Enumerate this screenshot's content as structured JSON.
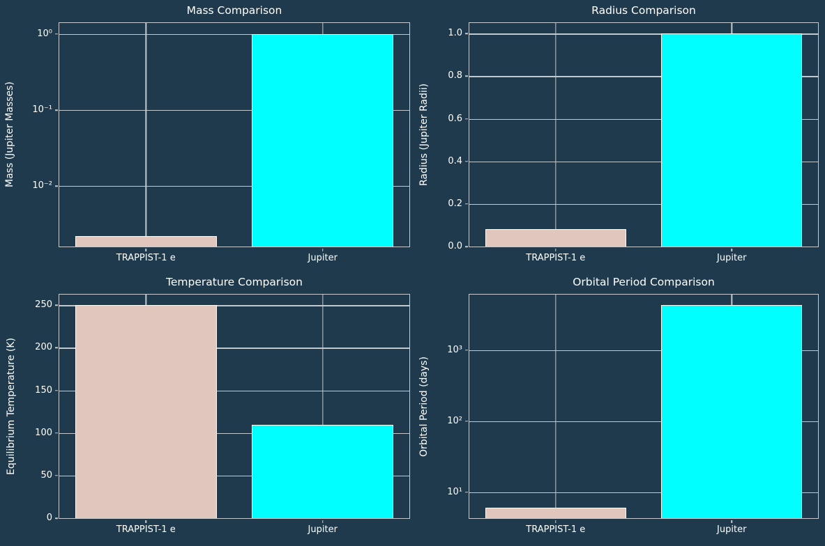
{
  "figure": {
    "background_color": "#1F3A4C",
    "text_color": "#FFFFFF",
    "grid_color": "#C2CACE",
    "spine_color": "#C6CCD0",
    "bar_edge_color": "#FFFFFF"
  },
  "chart_data": [
    {
      "type": "bar",
      "title": "Mass Comparison",
      "ylabel": "Mass (Jupiter Masses)",
      "xlabel": "",
      "yscale": "log",
      "ylim": [
        0.0016,
        1.4
      ],
      "grid": true,
      "legend": "none",
      "categories": [
        "TRAPPIST-1 e",
        "Jupiter"
      ],
      "values": [
        0.0022,
        1.0
      ],
      "bar_colors": [
        "#E0C6BD",
        "#00FFFF"
      ],
      "yticks": [
        {
          "value": 1,
          "label": "10⁰"
        },
        {
          "value": 0.1,
          "label": "10⁻¹"
        },
        {
          "value": 0.01,
          "label": "10⁻²"
        }
      ],
      "x_centers": [
        0.2475,
        0.7525
      ],
      "bar_width_frac": 0.404
    },
    {
      "type": "bar",
      "title": "Radius Comparison",
      "ylabel": "Radius (Jupiter Radii)",
      "xlabel": "",
      "yscale": "linear",
      "ylim": [
        0,
        1.05
      ],
      "grid": true,
      "legend": "none",
      "categories": [
        "TRAPPIST-1 e",
        "Jupiter"
      ],
      "values": [
        0.082,
        1.0
      ],
      "bar_colors": [
        "#E0C6BD",
        "#00FFFF"
      ],
      "yticks": [
        {
          "value": 0.0,
          "label": "0.0"
        },
        {
          "value": 0.2,
          "label": "0.2"
        },
        {
          "value": 0.4,
          "label": "0.4"
        },
        {
          "value": 0.6,
          "label": "0.6"
        },
        {
          "value": 0.8,
          "label": "0.8"
        },
        {
          "value": 1.0,
          "label": "1.0"
        }
      ],
      "x_centers": [
        0.2475,
        0.7525
      ],
      "bar_width_frac": 0.404
    },
    {
      "type": "bar",
      "title": "Temperature Comparison",
      "ylabel": "Equilibrium Temperature (K)",
      "xlabel": "",
      "yscale": "linear",
      "ylim": [
        0,
        262.5
      ],
      "grid": true,
      "legend": "none",
      "categories": [
        "TRAPPIST-1 e",
        "Jupiter"
      ],
      "values": [
        250,
        110
      ],
      "bar_colors": [
        "#E0C6BD",
        "#00FFFF"
      ],
      "yticks": [
        {
          "value": 0,
          "label": "0"
        },
        {
          "value": 50,
          "label": "50"
        },
        {
          "value": 100,
          "label": "100"
        },
        {
          "value": 150,
          "label": "150"
        },
        {
          "value": 200,
          "label": "200"
        },
        {
          "value": 250,
          "label": "250"
        }
      ],
      "x_centers": [
        0.2475,
        0.7525
      ],
      "bar_width_frac": 0.404
    },
    {
      "type": "bar",
      "title": "Orbital Period Comparison",
      "ylabel": "Orbital Period (days)",
      "xlabel": "",
      "yscale": "log",
      "ylim": [
        4.3,
        6100
      ],
      "grid": true,
      "legend": "none",
      "categories": [
        "TRAPPIST-1 e",
        "Jupiter"
      ],
      "values": [
        6.1,
        4333
      ],
      "bar_colors": [
        "#E0C6BD",
        "#00FFFF"
      ],
      "yticks": [
        {
          "value": 1000,
          "label": "10³"
        },
        {
          "value": 100,
          "label": "10²"
        },
        {
          "value": 10,
          "label": "10¹"
        }
      ],
      "x_centers": [
        0.2475,
        0.7525
      ],
      "bar_width_frac": 0.404
    }
  ]
}
